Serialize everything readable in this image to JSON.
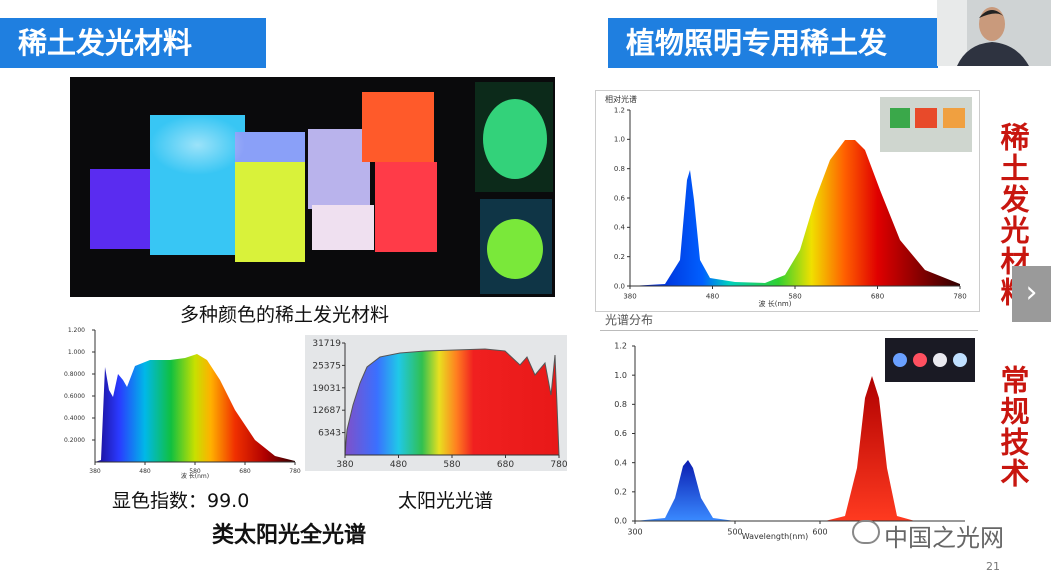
{
  "left_header": "稀土发光材料",
  "right_header": "植物照明专用稀土发",
  "photo_caption": "多种颜色的稀土发光材料",
  "chart1": {
    "yticks": [
      "1.200",
      "1.000",
      "0.8000",
      "0.6000",
      "0.4000",
      "0.2000"
    ],
    "xticks": [
      "380",
      "480",
      "580",
      "680",
      "780"
    ],
    "xlabel": "波 长(nm)",
    "caption": "显色指数：99.0"
  },
  "chart2": {
    "yticks": [
      "31719",
      "25375",
      "19031",
      "12687",
      "6343"
    ],
    "xticks": [
      "380",
      "480",
      "580",
      "680",
      "780"
    ],
    "caption": "太阳光光谱"
  },
  "subtitle": "类太阳光全光谱",
  "chart3": {
    "title": "相对光谱",
    "yticks": [
      "1.2",
      "1.0",
      "0.8",
      "0.6",
      "0.4",
      "0.2",
      "0.0"
    ],
    "xticks": [
      "380",
      "480",
      "580",
      "680",
      "780"
    ],
    "xlabel": "波 长(nm)",
    "caption": "光谱分布"
  },
  "chart4": {
    "yticks": [
      "1.2",
      "1.0",
      "0.8",
      "0.6",
      "0.4",
      "0.2",
      "0.0"
    ],
    "xticks": [
      "300",
      "500",
      "600"
    ],
    "xlabel": "Wavelength(nm)"
  },
  "side_label_1": "稀土发光材料",
  "side_label_2": "常规技术",
  "watermark": "中国之光网",
  "page_number": "21"
}
